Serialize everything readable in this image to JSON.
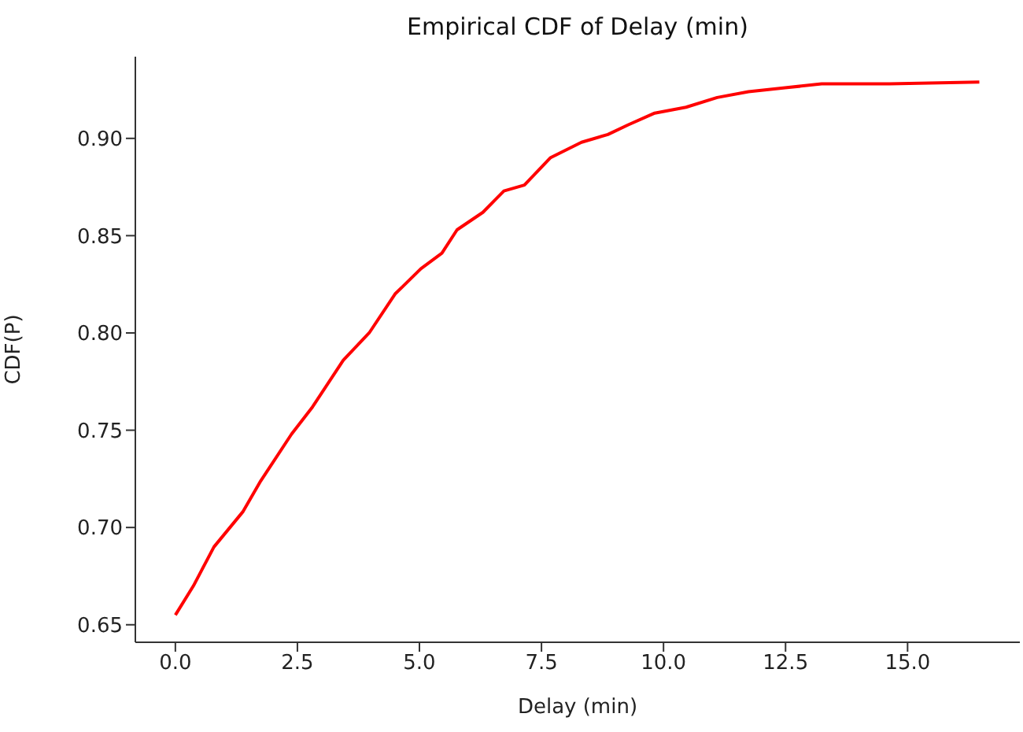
{
  "chart_data": {
    "type": "line",
    "title": "Empirical CDF of Delay (min)",
    "xlabel": "Delay (min)",
    "ylabel": "CDF(P)",
    "x": [
      0,
      0.37,
      0.79,
      1.38,
      1.75,
      2.38,
      2.81,
      3.44,
      3.97,
      4.5,
      5.03,
      5.46,
      5.77,
      6.3,
      6.73,
      7.15,
      7.68,
      8.32,
      8.86,
      9.28,
      9.82,
      10.46,
      11.1,
      11.74,
      12.49,
      13.24,
      14.63,
      16.47
    ],
    "series": [
      {
        "color": "#ff0000",
        "values": [
          0.655,
          0.67,
          0.69,
          0.708,
          0.724,
          0.748,
          0.762,
          0.786,
          0.8,
          0.82,
          0.833,
          0.841,
          0.853,
          0.862,
          0.873,
          0.876,
          0.89,
          0.898,
          0.902,
          0.907,
          0.913,
          0.916,
          0.921,
          0.924,
          0.926,
          0.928,
          0.928,
          0.929
        ]
      }
    ],
    "xlim": [
      -0.82,
      17.3
    ],
    "xticks": [
      {
        "value": 0,
        "label": "0.0"
      },
      {
        "value": 2.5,
        "label": "2.5"
      },
      {
        "value": 5,
        "label": "5.0"
      },
      {
        "value": 7.5,
        "label": "7.5"
      },
      {
        "value": 10,
        "label": "10.0"
      },
      {
        "value": 12.5,
        "label": "12.5"
      },
      {
        "value": 15,
        "label": "15.0"
      }
    ],
    "ylim": [
      0.641,
      0.942
    ],
    "yticks": [
      {
        "value": 0.65,
        "label": "0.65"
      },
      {
        "value": 0.7,
        "label": "0.70"
      },
      {
        "value": 0.75,
        "label": "0.75"
      },
      {
        "value": 0.8,
        "label": "0.80"
      },
      {
        "value": 0.85,
        "label": "0.85"
      },
      {
        "value": 0.9,
        "label": "0.90"
      }
    ],
    "grid": false,
    "legend": false,
    "marker": "none",
    "line_style": "solid"
  }
}
